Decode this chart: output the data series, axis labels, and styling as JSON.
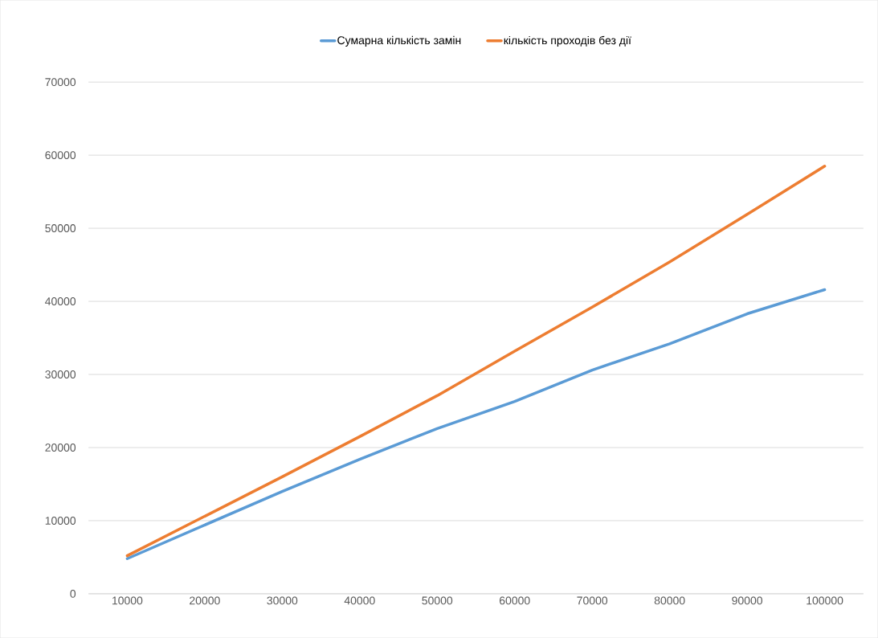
{
  "chart_data": {
    "type": "line",
    "categories": [
      "10000",
      "20000",
      "30000",
      "40000",
      "50000",
      "60000",
      "70000",
      "80000",
      "90000",
      "100000"
    ],
    "series": [
      {
        "name": "Сумарна кількість замін",
        "color": "#5b9bd5",
        "values": [
          4800,
          9400,
          14000,
          18400,
          22600,
          26300,
          30600,
          34200,
          38300,
          41600
        ]
      },
      {
        "name": "кількість проходів без дії",
        "color": "#ed7d31",
        "values": [
          5200,
          10600,
          16000,
          21500,
          27100,
          33200,
          39200,
          45400,
          51900,
          58500
        ]
      }
    ],
    "ylim": [
      0,
      70000
    ],
    "yticks": [
      0,
      10000,
      20000,
      30000,
      40000,
      50000,
      60000,
      70000
    ],
    "grid": "y",
    "legend": "top",
    "marker": "none",
    "line_style": "solid"
  }
}
